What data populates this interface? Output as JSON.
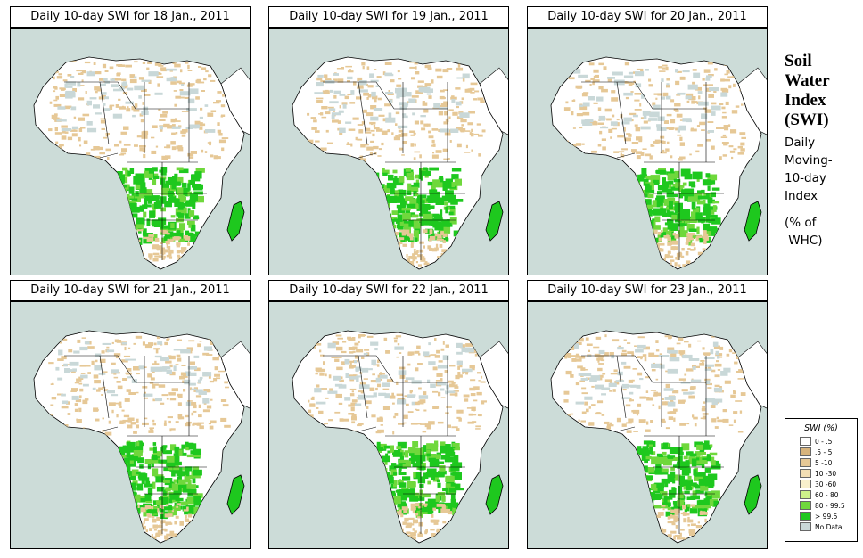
{
  "panels": [
    {
      "title": "Daily 10-day SWI for  18 Jan., 2011"
    },
    {
      "title": "Daily 10-day SWI for  19 Jan., 2011"
    },
    {
      "title": "Daily 10-day SWI for  20 Jan., 2011"
    },
    {
      "title": "Daily 10-day SWI for  21 Jan., 2011"
    },
    {
      "title": "Daily 10-day SWI for  22 Jan., 2011"
    },
    {
      "title": "Daily 10-day SWI for  23 Jan., 2011"
    }
  ],
  "side_panel": {
    "title_lines": [
      "Soil",
      "Water",
      "Index",
      "(SWI)"
    ],
    "desc_lines": [
      "Daily",
      "Moving-",
      "10-day",
      "Index"
    ],
    "units_lines": [
      "(% of",
      " WHC)"
    ]
  },
  "legend": {
    "title": "SWI (%)",
    "items": [
      {
        "label": "0 - .5",
        "color": "#ffffff"
      },
      {
        "label": ".5 - 5",
        "color": "#d8b47c"
      },
      {
        "label": "5 -10",
        "color": "#e6c896"
      },
      {
        "label": "10 -30",
        "color": "#f2deb4"
      },
      {
        "label": "30 -60",
        "color": "#f8f0cc"
      },
      {
        "label": "60 - 80",
        "color": "#cdf08a"
      },
      {
        "label": "80 - 99.5",
        "color": "#6fd83c"
      },
      {
        "label": "> 99.5",
        "color": "#1ec81e"
      },
      {
        "label": "No Data",
        "color": "#c9d8d8"
      }
    ]
  },
  "colors": {
    "ocean": "#ccdcd8",
    "land": "#ffffff",
    "dry": "#e6c896",
    "wet": "#1ec81e",
    "moist": "#6fd83c",
    "nodata": "#c9d8d8"
  }
}
